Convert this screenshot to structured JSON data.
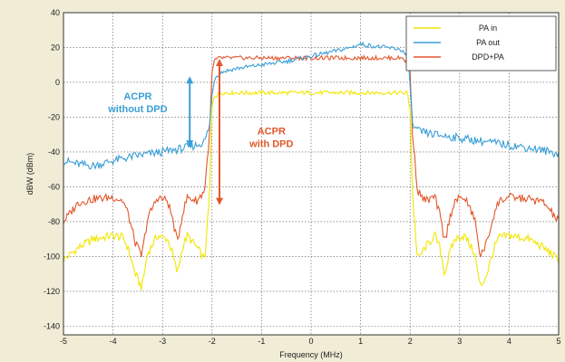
{
  "chart_data": {
    "type": "line",
    "title": "",
    "xlabel": "Frequency (MHz)",
    "ylabel": "dBW (dBm)",
    "xlim": [
      -5,
      5
    ],
    "ylim": [
      -145,
      40
    ],
    "xticks": [
      -5,
      -4,
      -3,
      -2,
      -1,
      0,
      1,
      2,
      3,
      4,
      5
    ],
    "yticks": [
      -140,
      -120,
      -100,
      -80,
      -60,
      -40,
      -20,
      0,
      20,
      40
    ],
    "grid": true,
    "legend_position": "top-right",
    "series": [
      {
        "name": "PA in",
        "color": "#f2e600",
        "x": [
          -5,
          -4.7,
          -4.4,
          -4.0,
          -3.8,
          -3.7,
          -3.55,
          -3.42,
          -3.3,
          -3.1,
          -2.9,
          -2.8,
          -2.7,
          -2.6,
          -2.5,
          -2.3,
          -2.15,
          -2.05,
          -2.0,
          -1.95,
          -1.85,
          -1.5,
          -1.0,
          -0.5,
          0,
          0.5,
          1.0,
          1.5,
          1.85,
          1.95,
          2.0,
          2.05,
          2.15,
          2.3,
          2.5,
          2.6,
          2.7,
          2.8,
          2.9,
          3.1,
          3.3,
          3.42,
          3.55,
          3.7,
          3.8,
          4.0,
          4.4,
          4.7,
          5
        ],
        "y": [
          -102,
          -95,
          -90,
          -88,
          -89,
          -95,
          -110,
          -118,
          -98,
          -88,
          -90,
          -98,
          -110,
          -95,
          -88,
          -95,
          -102,
          -65,
          -15,
          -7,
          -6,
          -6,
          -6,
          -6,
          -6,
          -6,
          -6,
          -6,
          -6,
          -7,
          -15,
          -65,
          -102,
          -95,
          -88,
          -95,
          -110,
          -98,
          -90,
          -88,
          -98,
          -118,
          -110,
          -95,
          -89,
          -88,
          -90,
          -95,
          -102
        ]
      },
      {
        "name": "PA out",
        "color": "#3a9fd6",
        "x": [
          -5,
          -4.7,
          -4.4,
          -4.0,
          -3.5,
          -3.0,
          -2.6,
          -2.3,
          -2.15,
          -2.05,
          -2.0,
          -1.95,
          -1.8,
          -1.5,
          -1.0,
          -0.5,
          0,
          0.5,
          0.8,
          1.0,
          1.2,
          1.5,
          1.8,
          1.95,
          2.0,
          2.05,
          2.15,
          2.5,
          3.0,
          3.5,
          4.0,
          4.5,
          5
        ],
        "y": [
          -45,
          -47,
          -48,
          -45,
          -42,
          -40,
          -38,
          -36,
          -34,
          -25,
          -8,
          3,
          6,
          8,
          10,
          12,
          15,
          18,
          20,
          22,
          21,
          20,
          19,
          15,
          0,
          -25,
          -28,
          -30,
          -32,
          -34,
          -36,
          -38,
          -41
        ]
      },
      {
        "name": "DPD+PA",
        "color": "#e2572a",
        "x": [
          -5,
          -4.7,
          -4.4,
          -4.0,
          -3.8,
          -3.7,
          -3.55,
          -3.42,
          -3.3,
          -3.1,
          -2.9,
          -2.8,
          -2.7,
          -2.6,
          -2.5,
          -2.3,
          -2.15,
          -2.05,
          -2.0,
          -1.95,
          -1.85,
          -1.5,
          -1.0,
          -0.5,
          0,
          0.5,
          1.0,
          1.5,
          1.85,
          1.95,
          2.0,
          2.05,
          2.15,
          2.3,
          2.5,
          2.6,
          2.7,
          2.8,
          2.9,
          3.1,
          3.3,
          3.42,
          3.55,
          3.7,
          3.8,
          4.0,
          4.4,
          4.7,
          5
        ],
        "y": [
          -80,
          -69,
          -67,
          -66,
          -68,
          -75,
          -92,
          -100,
          -78,
          -66,
          -68,
          -78,
          -92,
          -76,
          -66,
          -68,
          -62,
          -30,
          5,
          12,
          14,
          14,
          14,
          14,
          14,
          14,
          14,
          14,
          14,
          12,
          5,
          -30,
          -62,
          -68,
          -66,
          -76,
          -92,
          -78,
          -68,
          -66,
          -78,
          -100,
          -92,
          -75,
          -68,
          -66,
          -67,
          -69,
          -80
        ]
      }
    ],
    "annotations": [
      {
        "text_lines": [
          "ACPR",
          "without DPD"
        ],
        "color": "#3a9fd6",
        "label_x": -3.5,
        "label_y": -10,
        "arrow_x": -2.45,
        "arrow_from": 3,
        "arrow_to": -37
      },
      {
        "text_lines": [
          "ACPR",
          "with DPD"
        ],
        "color": "#e2572a",
        "label_x": -0.8,
        "label_y": -30,
        "arrow_x": -1.85,
        "arrow_from": 13,
        "arrow_to": -70
      }
    ]
  },
  "colors": {
    "background": "#f1ecd6",
    "plot_background": "#ffffff",
    "grid": "#555555"
  }
}
